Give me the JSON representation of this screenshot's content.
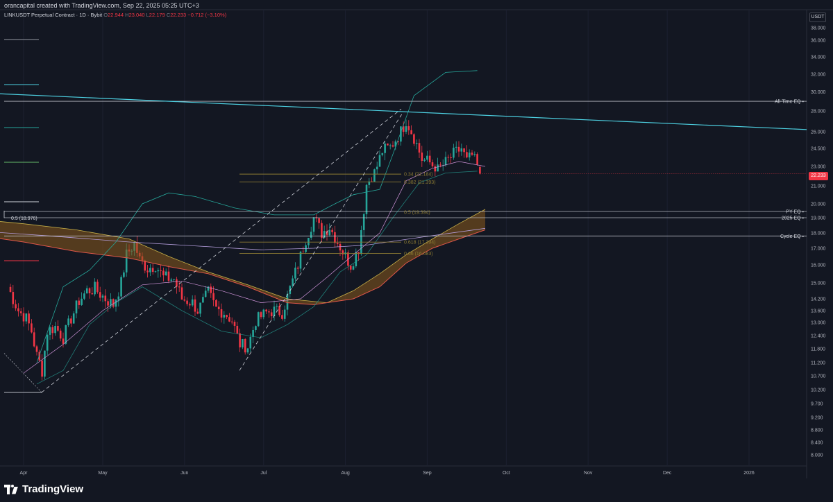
{
  "header": {
    "credit": "orancapital created with TradingView.com, Sep 22, 2025 05:25 UTC+3",
    "symbol": "LINKUSDT Perpetual Contract · 1D · Bybit",
    "o_label": "O",
    "o_value": "22.944",
    "h_label": "H",
    "h_value": "23.040",
    "l_label": "L",
    "l_value": "22.179",
    "c_label": "C",
    "c_value": "22.233",
    "change": "−0.712 (−3.10%)"
  },
  "price_axis": {
    "currency_label": "USDT",
    "last_price": "22.233"
  },
  "brand": {
    "name": "TradingView"
  },
  "colors": {
    "background": "#131722",
    "up": "#26a69a",
    "down": "#f23645",
    "trendline": "#4dd0e1",
    "level_line": "#d1d4dc",
    "fib": "#8b7a32",
    "band_fill": "#8a5a1c",
    "band_outline_low": "#e0574a",
    "band_outline_high": "#c9b24a",
    "bollinger": "#26a69a"
  },
  "chart_data": {
    "type": "candlestick",
    "title": "LINKUSDT Perpetual Contract · 1D · Bybit",
    "y_scale": "log",
    "ylim": [
      7.6,
      40.0
    ],
    "xlim": [
      "2025-03-25",
      "2026-01-24"
    ],
    "x_ticks": [
      {
        "date": "2025-04-01",
        "label": "Apr"
      },
      {
        "date": "2025-05-01",
        "label": "May"
      },
      {
        "date": "2025-06-01",
        "label": "Jun"
      },
      {
        "date": "2025-07-01",
        "label": "Jul"
      },
      {
        "date": "2025-08-01",
        "label": "Aug"
      },
      {
        "date": "2025-09-01",
        "label": "Sep"
      },
      {
        "date": "2025-10-01",
        "label": "Oct"
      },
      {
        "date": "2025-11-01",
        "label": "Nov"
      },
      {
        "date": "2025-12-01",
        "label": "Dec"
      },
      {
        "date": "2026-01-01",
        "label": "2026"
      }
    ],
    "y_ticks": [
      "38.000",
      "36.000",
      "34.000",
      "32.000",
      "30.000",
      "28.000",
      "26.000",
      "24.500",
      "23.000",
      "21.000",
      "20.000",
      "19.000",
      "18.000",
      "17.000",
      "16.000",
      "15.000",
      "14.200",
      "13.600",
      "13.000",
      "12.400",
      "11.800",
      "11.200",
      "10.700",
      "10.200",
      "9.700",
      "9.200",
      "8.800",
      "8.400",
      "8.000"
    ],
    "candles_anchor_close": [
      [
        "2025-03-26",
        14.8
      ],
      [
        "2025-03-28",
        14.2
      ],
      [
        "2025-03-30",
        13.6
      ],
      [
        "2025-04-02",
        13.2
      ],
      [
        "2025-04-04",
        12.6
      ],
      [
        "2025-04-06",
        11.5
      ],
      [
        "2025-04-08",
        10.9
      ],
      [
        "2025-04-10",
        12.6
      ],
      [
        "2025-04-13",
        12.8
      ],
      [
        "2025-04-16",
        12.3
      ],
      [
        "2025-04-19",
        13.2
      ],
      [
        "2025-04-22",
        14.1
      ],
      [
        "2025-04-25",
        14.6
      ],
      [
        "2025-04-28",
        14.7
      ],
      [
        "2025-05-02",
        14.2
      ],
      [
        "2025-05-05",
        13.9
      ],
      [
        "2025-05-08",
        15.0
      ],
      [
        "2025-05-10",
        16.6
      ],
      [
        "2025-05-13",
        17.3
      ],
      [
        "2025-05-15",
        16.3
      ],
      [
        "2025-05-18",
        15.8
      ],
      [
        "2025-05-21",
        16.0
      ],
      [
        "2025-05-24",
        15.3
      ],
      [
        "2025-05-28",
        15.2
      ],
      [
        "2025-05-31",
        14.2
      ],
      [
        "2025-06-04",
        14.0
      ],
      [
        "2025-06-06",
        13.6
      ],
      [
        "2025-06-10",
        14.5
      ],
      [
        "2025-06-13",
        13.7
      ],
      [
        "2025-06-16",
        13.5
      ],
      [
        "2025-06-19",
        13.1
      ],
      [
        "2025-06-22",
        12.0
      ],
      [
        "2025-06-25",
        11.9
      ],
      [
        "2025-06-28",
        13.1
      ],
      [
        "2025-07-02",
        13.5
      ],
      [
        "2025-07-05",
        13.6
      ],
      [
        "2025-07-08",
        13.5
      ],
      [
        "2025-07-11",
        14.7
      ],
      [
        "2025-07-14",
        16.0
      ],
      [
        "2025-07-17",
        17.6
      ],
      [
        "2025-07-20",
        19.0
      ],
      [
        "2025-07-23",
        18.0
      ],
      [
        "2025-07-26",
        18.4
      ],
      [
        "2025-07-29",
        17.4
      ],
      [
        "2025-08-01",
        16.5
      ],
      [
        "2025-08-03",
        16.0
      ],
      [
        "2025-08-06",
        17.0
      ],
      [
        "2025-08-09",
        21.1
      ],
      [
        "2025-08-12",
        22.4
      ],
      [
        "2025-08-15",
        24.3
      ],
      [
        "2025-08-18",
        24.6
      ],
      [
        "2025-08-22",
        26.0
      ],
      [
        "2025-08-24",
        27.1
      ],
      [
        "2025-08-27",
        25.5
      ],
      [
        "2025-08-30",
        23.6
      ],
      [
        "2025-09-02",
        23.3
      ],
      [
        "2025-09-05",
        22.7
      ],
      [
        "2025-09-08",
        23.3
      ],
      [
        "2025-09-11",
        24.0
      ],
      [
        "2025-09-14",
        24.5
      ],
      [
        "2025-09-16",
        23.4
      ],
      [
        "2025-09-18",
        23.9
      ],
      [
        "2025-09-20",
        23.0
      ],
      [
        "2025-09-21",
        22.233
      ]
    ],
    "annotations": [
      {
        "text": "All-Time EQ ▪",
        "y": 29.0
      },
      {
        "text": "PY EQ ▪",
        "y": 19.45
      },
      {
        "text": "2025 EQ ▪",
        "y": 19.0
      },
      {
        "text": "Cycle EQ ▪",
        "y": 17.8
      },
      {
        "text": "0.5 (18.976)",
        "y": 18.976
      },
      {
        "text": "0.34 (22.184)",
        "y": 22.184
      },
      {
        "text": "0.382 (21.393)",
        "y": 21.393
      },
      {
        "text": "0.5 (19.394)",
        "y": 19.394
      },
      {
        "text": "0.618 (17.394)",
        "y": 17.394
      },
      {
        "text": "0.66 (16.683)",
        "y": 16.683
      }
    ]
  }
}
